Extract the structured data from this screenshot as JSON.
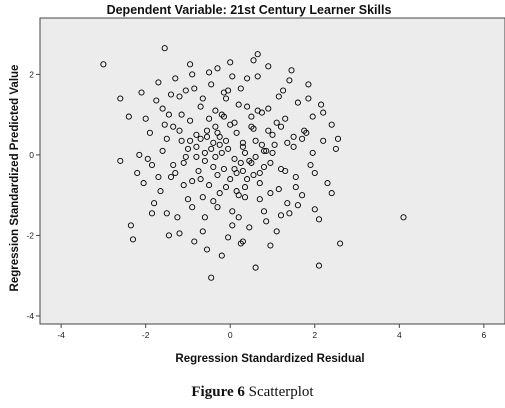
{
  "chart_data": {
    "type": "scatter",
    "title": "Dependent Variable: 21st Century Learner Skills",
    "xlabel": "Regression Standardized Residual",
    "ylabel": "Regression Standardized Predicted Value",
    "xlim": [
      -4.5,
      6.5
    ],
    "ylim": [
      -4.2,
      3.4
    ],
    "xticks": [
      -4,
      -2,
      0,
      2,
      4,
      6
    ],
    "yticks": [
      -4,
      -2,
      0,
      2
    ],
    "xtick_labels": [
      "-4",
      "-2",
      "0",
      "2",
      "4",
      "6"
    ],
    "ytick_labels": [
      "-4",
      "-2",
      "0",
      "2"
    ],
    "grid": false,
    "background": "#ececec",
    "marker_color": "#000000",
    "points": [
      [
        -3.0,
        2.25
      ],
      [
        -2.6,
        1.4
      ],
      [
        -2.6,
        -0.15
      ],
      [
        -2.35,
        -1.75
      ],
      [
        -2.3,
        -2.1
      ],
      [
        -2.15,
        0.0
      ],
      [
        -2.05,
        -0.7
      ],
      [
        -1.9,
        0.55
      ],
      [
        -1.85,
        -0.25
      ],
      [
        -1.75,
        1.35
      ],
      [
        -1.7,
        1.8
      ],
      [
        -1.65,
        -0.9
      ],
      [
        -1.6,
        0.1
      ],
      [
        -1.55,
        2.65
      ],
      [
        -1.5,
        -1.45
      ],
      [
        -1.45,
        1.0
      ],
      [
        -1.4,
        -0.55
      ],
      [
        -1.35,
        0.7
      ],
      [
        -1.3,
        1.9
      ],
      [
        -1.2,
        -1.95
      ],
      [
        -1.15,
        0.35
      ],
      [
        -1.1,
        -0.2
      ],
      [
        -1.05,
        1.6
      ],
      [
        -1.0,
        -1.1
      ],
      [
        -0.95,
        0.85
      ],
      [
        -0.9,
        2.0
      ],
      [
        -0.85,
        -2.15
      ],
      [
        -0.8,
        0.2
      ],
      [
        -0.7,
        -0.6
      ],
      [
        -0.65,
        1.4
      ],
      [
        -0.6,
        -1.55
      ],
      [
        -0.55,
        0.6
      ],
      [
        -0.5,
        2.05
      ],
      [
        -0.45,
        -3.05
      ],
      [
        -0.4,
        -0.3
      ],
      [
        -0.35,
        1.1
      ],
      [
        -0.3,
        -1.3
      ],
      [
        -0.25,
        0.45
      ],
      [
        -0.2,
        -2.5
      ],
      [
        -0.15,
        1.55
      ],
      [
        -0.1,
        -0.8
      ],
      [
        -0.05,
        0.15
      ],
      [
        0.0,
        2.3
      ],
      [
        0.05,
        -1.75
      ],
      [
        0.1,
        0.8
      ],
      [
        0.15,
        -0.45
      ],
      [
        0.2,
        1.25
      ],
      [
        0.25,
        -2.2
      ],
      [
        0.3,
        0.3
      ],
      [
        0.35,
        -1.05
      ],
      [
        0.4,
        1.9
      ],
      [
        0.5,
        -0.2
      ],
      [
        0.55,
        0.65
      ],
      [
        0.6,
        -2.8
      ],
      [
        0.65,
        2.5
      ],
      [
        0.7,
        -0.7
      ],
      [
        0.75,
        1.05
      ],
      [
        0.8,
        -1.4
      ],
      [
        0.85,
        0.1
      ],
      [
        0.9,
        2.2
      ],
      [
        0.95,
        -0.95
      ],
      [
        1.0,
        0.5
      ],
      [
        1.1,
        -1.9
      ],
      [
        1.15,
        1.45
      ],
      [
        1.2,
        -0.35
      ],
      [
        1.3,
        0.9
      ],
      [
        1.35,
        -1.2
      ],
      [
        1.4,
        1.85
      ],
      [
        1.5,
        0.2
      ],
      [
        1.55,
        -0.55
      ],
      [
        1.6,
        1.3
      ],
      [
        1.7,
        -1.0
      ],
      [
        1.75,
        0.6
      ],
      [
        1.85,
        1.75
      ],
      [
        1.9,
        -0.25
      ],
      [
        1.95,
        0.95
      ],
      [
        2.0,
        -1.35
      ],
      [
        2.1,
        -2.75
      ],
      [
        2.15,
        1.25
      ],
      [
        2.2,
        0.35
      ],
      [
        2.3,
        -0.7
      ],
      [
        2.4,
        0.75
      ],
      [
        2.5,
        0.15
      ],
      [
        2.55,
        0.4
      ],
      [
        2.6,
        -2.2
      ],
      [
        4.1,
        -1.55
      ],
      [
        -0.2,
        0.05
      ],
      [
        0.1,
        -0.1
      ],
      [
        -0.4,
        0.3
      ],
      [
        0.3,
        0.2
      ],
      [
        -0.6,
        -0.15
      ],
      [
        0.6,
        0.35
      ],
      [
        -0.8,
        0.5
      ],
      [
        0.8,
        -0.3
      ],
      [
        -1.0,
        0.15
      ],
      [
        1.0,
        0.05
      ],
      [
        -0.3,
        -0.5
      ],
      [
        0.4,
        -0.6
      ],
      [
        -0.5,
        0.9
      ],
      [
        0.5,
        0.95
      ],
      [
        -0.7,
        1.2
      ],
      [
        0.7,
        -1.1
      ],
      [
        -0.9,
        -1.3
      ],
      [
        0.9,
        1.15
      ],
      [
        -1.2,
        0.6
      ],
      [
        1.2,
        0.7
      ],
      [
        -0.1,
        1.4
      ],
      [
        0.2,
        -1.55
      ],
      [
        -0.25,
        -0.95
      ],
      [
        0.25,
        1.65
      ],
      [
        -0.45,
        1.75
      ],
      [
        0.45,
        -1.8
      ],
      [
        -0.65,
        -1.9
      ],
      [
        0.65,
        1.95
      ],
      [
        -1.3,
        -0.45
      ],
      [
        1.3,
        -0.4
      ],
      [
        -1.5,
        0.4
      ],
      [
        1.5,
        0.45
      ],
      [
        -0.15,
        -0.35
      ],
      [
        0.15,
        0.55
      ],
      [
        -0.35,
        0.7
      ],
      [
        0.35,
        -0.8
      ],
      [
        -0.75,
        -0.4
      ],
      [
        0.75,
        0.25
      ],
      [
        -0.95,
        0.35
      ],
      [
        0.95,
        -0.2
      ],
      [
        -1.1,
        -0.75
      ],
      [
        1.1,
        0.8
      ],
      [
        0.0,
        -0.6
      ],
      [
        0.0,
        0.75
      ],
      [
        -0.2,
        1.0
      ],
      [
        0.2,
        -1.0
      ],
      [
        -1.8,
        -1.2
      ],
      [
        1.8,
        0.55
      ],
      [
        -2.0,
        0.9
      ],
      [
        2.0,
        -0.45
      ],
      [
        -1.6,
        1.15
      ],
      [
        1.6,
        -1.25
      ],
      [
        -0.55,
        -2.35
      ],
      [
        0.55,
        2.35
      ],
      [
        -1.25,
        -1.55
      ],
      [
        1.25,
        1.6
      ],
      [
        -2.2,
        -0.45
      ],
      [
        2.2,
        1.05
      ],
      [
        -0.85,
        1.65
      ],
      [
        0.85,
        -1.65
      ],
      [
        -0.05,
        -2.05
      ],
      [
        0.05,
        1.95
      ],
      [
        -1.4,
        1.5
      ],
      [
        1.4,
        -1.45
      ],
      [
        -1.95,
        -0.1
      ],
      [
        1.95,
        0.05
      ],
      [
        -0.4,
        -1.15
      ],
      [
        0.4,
        1.2
      ],
      [
        -0.6,
        0.05
      ],
      [
        0.6,
        -0.05
      ],
      [
        -1.05,
        -0.05
      ],
      [
        1.05,
        0.25
      ],
      [
        -0.3,
        0.55
      ],
      [
        0.3,
        -0.4
      ],
      [
        -0.15,
        0.95
      ],
      [
        0.15,
        -0.9
      ],
      [
        -0.5,
        -0.75
      ],
      [
        0.5,
        0.7
      ],
      [
        -0.7,
        0.4
      ],
      [
        0.7,
        -0.45
      ],
      [
        -0.9,
        -0.65
      ],
      [
        0.9,
        0.6
      ],
      [
        -1.15,
        1.0
      ],
      [
        1.15,
        -0.85
      ],
      [
        -1.35,
        -0.25
      ],
      [
        1.35,
        0.3
      ],
      [
        -1.55,
        0.75
      ],
      [
        1.55,
        -0.8
      ],
      [
        -1.7,
        -0.55
      ],
      [
        1.7,
        0.4
      ],
      [
        -0.1,
        0.35
      ],
      [
        0.1,
        -0.35
      ],
      [
        -0.35,
        -0.05
      ],
      [
        0.35,
        0.05
      ],
      [
        -0.25,
        0.25
      ],
      [
        0.25,
        -0.2
      ],
      [
        -0.45,
        0.15
      ],
      [
        0.45,
        -0.15
      ],
      [
        -0.55,
        0.45
      ],
      [
        0.55,
        -0.5
      ],
      [
        -0.8,
        -0.05
      ],
      [
        0.8,
        0.1
      ],
      [
        -1.2,
        1.45
      ],
      [
        1.2,
        -1.5
      ],
      [
        -0.65,
        -1.05
      ],
      [
        0.65,
        1.1
      ],
      [
        -0.05,
        1.6
      ],
      [
        0.05,
        -1.4
      ],
      [
        -2.4,
        0.95
      ],
      [
        2.4,
        -0.95
      ],
      [
        -2.1,
        1.55
      ],
      [
        2.1,
        -1.6
      ],
      [
        -1.85,
        -1.45
      ],
      [
        1.85,
        1.4
      ],
      [
        -0.95,
        2.25
      ],
      [
        0.95,
        -2.25
      ],
      [
        -0.3,
        2.15
      ],
      [
        0.3,
        -2.15
      ],
      [
        -1.45,
        -2.0
      ],
      [
        1.45,
        2.1
      ]
    ]
  },
  "figure": {
    "caption_label": "Figure 6",
    "caption_text": " Scatterplot"
  }
}
